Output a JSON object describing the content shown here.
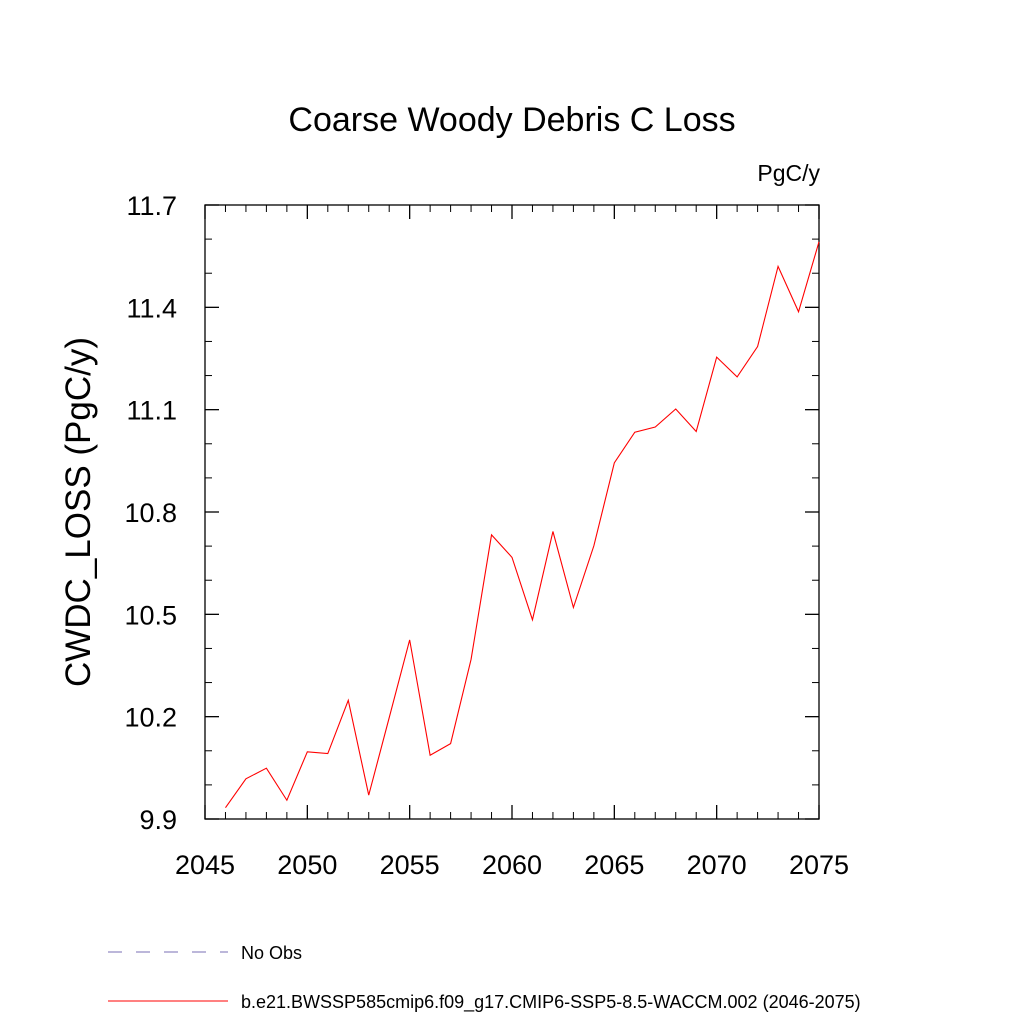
{
  "chart_data": {
    "type": "line",
    "title": "Coarse Woody Debris C Loss",
    "units_label": "PgC/y",
    "ylabel": "CWDC_LOSS  (PgC/y)",
    "xlabel": "",
    "xlim": [
      2045,
      2075
    ],
    "ylim": [
      9.9,
      11.7
    ],
    "x_ticks": [
      2045,
      2050,
      2055,
      2060,
      2065,
      2070,
      2075
    ],
    "x_tick_labels": [
      "2045",
      "2050",
      "2055",
      "2060",
      "2065",
      "2070",
      "2075"
    ],
    "y_ticks": [
      9.9,
      10.2,
      10.5,
      10.8,
      11.1,
      11.4,
      11.7
    ],
    "y_tick_labels": [
      "9.9",
      "10.2",
      "10.5",
      "10.8",
      "11.1",
      "11.4",
      "11.7"
    ],
    "grid": false,
    "legend_position": "bottom-left",
    "series": [
      {
        "name": "b.e21.BWSSP585cmip6.f09_g17.CMIP6-SSP5-8.5-WACCM.002 (2046-2075)",
        "color": "#ff0000",
        "style": "solid",
        "x": [
          2046,
          2047,
          2048,
          2049,
          2050,
          2051,
          2052,
          2053,
          2054,
          2055,
          2056,
          2057,
          2058,
          2059,
          2060,
          2061,
          2062,
          2063,
          2064,
          2065,
          2066,
          2067,
          2068,
          2069,
          2070,
          2071,
          2072,
          2073,
          2074,
          2075
        ],
        "values": [
          9.933,
          10.018,
          10.049,
          9.955,
          10.097,
          10.092,
          10.248,
          9.97,
          10.197,
          10.425,
          10.087,
          10.121,
          10.368,
          10.733,
          10.667,
          10.484,
          10.743,
          10.52,
          10.701,
          10.944,
          11.034,
          11.049,
          11.102,
          11.036,
          11.254,
          11.196,
          11.285,
          11.52,
          11.387,
          11.592
        ]
      }
    ],
    "legend": [
      {
        "label": "No Obs",
        "color": "#7a6fb4",
        "style": "dashed"
      },
      {
        "label": "b.e21.BWSSP585cmip6.f09_g17.CMIP6-SSP5-8.5-WACCM.002 (2046-2075)",
        "color": "#ff0000",
        "style": "solid"
      }
    ]
  }
}
